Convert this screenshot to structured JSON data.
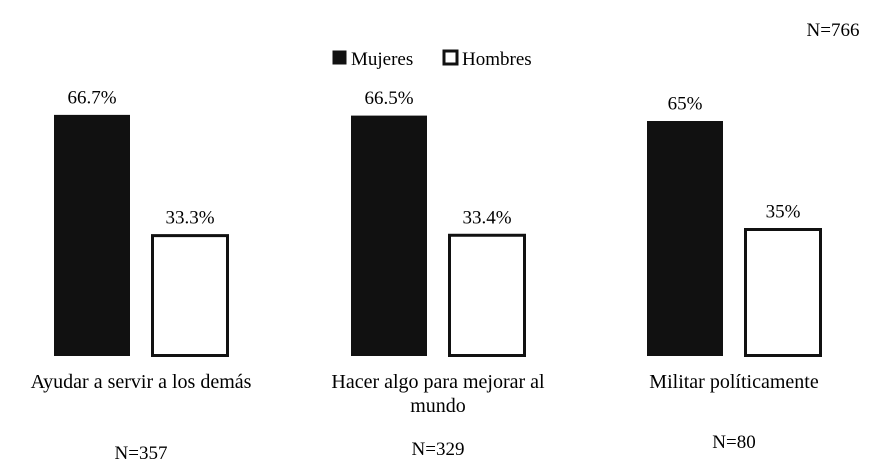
{
  "chart_data": {
    "type": "bar",
    "total_label": "N=766",
    "categories": [
      {
        "label_lines": [
          "Ayudar a servir a los demás"
        ],
        "n_label": "N=357"
      },
      {
        "label_lines": [
          "Hacer algo para mejorar al",
          "mundo"
        ],
        "n_label": "N=329"
      },
      {
        "label_lines": [
          "Militar políticamente"
        ],
        "n_label": "N=80"
      }
    ],
    "series": [
      {
        "name": "Mujeres",
        "color": "#111111",
        "values": [
          66.7,
          66.5,
          65
        ],
        "value_labels": [
          "66.7%",
          "66.5%",
          "65%"
        ]
      },
      {
        "name": "Hombres",
        "color": "#ffffff",
        "values": [
          33.3,
          33.4,
          35
        ],
        "value_labels": [
          "33.3%",
          "33.4%",
          "35%"
        ]
      }
    ],
    "legend_position": "top-center",
    "grid": false,
    "axes_visible": false
  }
}
